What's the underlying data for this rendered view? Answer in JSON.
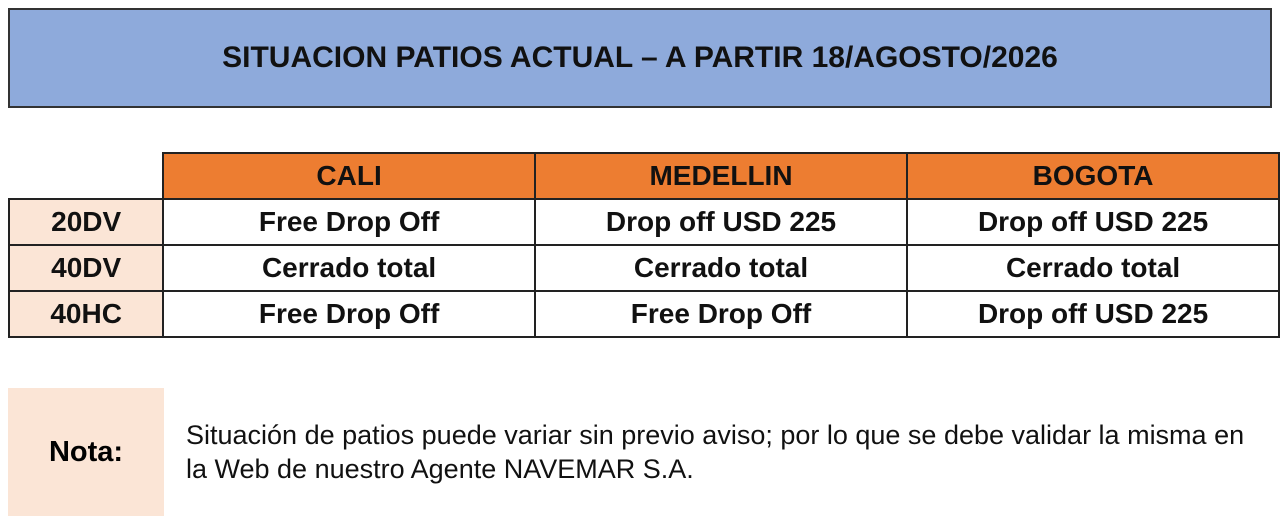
{
  "header": {
    "title": "SITUACION PATIOS ACTUAL – A PARTIR 18/AGOSTO/2026"
  },
  "table": {
    "columns": [
      "CALI",
      "MEDELLIN",
      "BOGOTA"
    ],
    "rows": [
      [
        "20DV",
        "Free Drop Off",
        "Drop off USD 225",
        "Drop off USD 225"
      ],
      [
        "40DV",
        "Cerrado total",
        "Cerrado total",
        "Cerrado total"
      ],
      [
        "40HC",
        "Free Drop Off",
        "Free Drop Off",
        "Drop off USD 225"
      ]
    ]
  },
  "note": {
    "label": "Nota:",
    "text": "Situación de patios puede variar sin previo aviso; por lo que se debe validar la misma en la Web de nuestro Agente NAVEMAR S.A."
  }
}
